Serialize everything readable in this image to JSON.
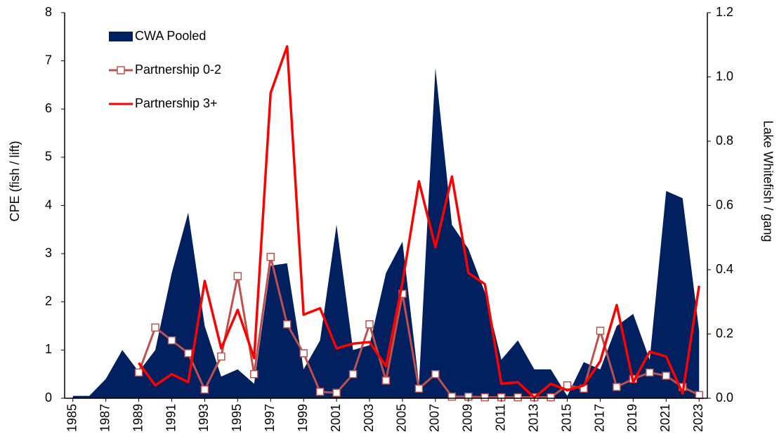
{
  "chart_data": {
    "type": "combo",
    "x": [
      1985,
      1986,
      1987,
      1988,
      1989,
      1990,
      1991,
      1992,
      1993,
      1994,
      1995,
      1996,
      1997,
      1998,
      1999,
      2000,
      2001,
      2002,
      2003,
      2004,
      2005,
      2006,
      2007,
      2008,
      2009,
      2010,
      2011,
      2012,
      2013,
      2014,
      2015,
      2016,
      2017,
      2018,
      2019,
      2020,
      2021,
      2022,
      2023
    ],
    "xlim": [
      1984.5,
      2023.5
    ],
    "xticks": [
      1985,
      1987,
      1989,
      1991,
      1993,
      1995,
      1997,
      1999,
      2001,
      2003,
      2005,
      2007,
      2009,
      2011,
      2013,
      2015,
      2017,
      2019,
      2021,
      2023
    ],
    "ylabel": "CPE  (fish / lift)",
    "y2label": "Lake Whitefish / gang",
    "ylim": [
      0,
      8
    ],
    "yticks": [
      0,
      1,
      2,
      3,
      4,
      5,
      6,
      7,
      8
    ],
    "y2lim": [
      0,
      1.2
    ],
    "y2ticks": [
      {
        "value": 0,
        "label": "0.0"
      },
      0.2,
      0.4,
      0.6,
      0.8,
      {
        "value": 1,
        "label": "1.0"
      },
      1.2
    ],
    "legend": "upper-left",
    "series": [
      {
        "name": "CWA Pooled",
        "type": "area",
        "axis": "y",
        "color": "#002060",
        "values": [
          0.05,
          0.05,
          0.4,
          1.0,
          0.55,
          1.0,
          2.6,
          3.85,
          1.5,
          0.45,
          0.6,
          0.3,
          2.75,
          2.8,
          0.6,
          1.2,
          3.6,
          1.0,
          1.1,
          2.6,
          3.25,
          0.3,
          6.85,
          3.6,
          3.1,
          2.2,
          0.8,
          1.2,
          0.6,
          0.6,
          0.05,
          0.75,
          0.6,
          1.5,
          1.75,
          0.8,
          4.3,
          4.15,
          1.4
        ]
      },
      {
        "name": "Partnership 0-2",
        "type": "line",
        "marker": "square",
        "axis": "y2",
        "color": "#c0504d",
        "values": [
          null,
          null,
          null,
          null,
          0.08,
          0.22,
          0.18,
          0.14,
          0.027,
          0.13,
          0.38,
          0.075,
          0.44,
          0.23,
          0.14,
          0.02,
          0.017,
          0.075,
          0.23,
          0.055,
          0.325,
          0.03,
          0.075,
          0.005,
          0.005,
          0.003,
          0.003,
          0.003,
          0.003,
          0.003,
          0.04,
          0.03,
          0.21,
          0.035,
          0.06,
          0.08,
          0.07,
          0.035,
          0.01
        ]
      },
      {
        "name": "Partnership 3+",
        "type": "line",
        "axis": "y2",
        "color": "#ff0000",
        "values": [
          null,
          null,
          null,
          null,
          0.11,
          0.04,
          0.075,
          0.05,
          0.365,
          0.155,
          0.275,
          0.125,
          0.95,
          1.095,
          0.26,
          0.28,
          0.155,
          0.17,
          0.175,
          0.1,
          0.36,
          0.675,
          0.47,
          0.69,
          0.39,
          0.355,
          0.045,
          0.05,
          0.002,
          0.045,
          0.025,
          0.04,
          0.115,
          0.29,
          0.05,
          0.145,
          0.13,
          0.015,
          0.35
        ]
      }
    ]
  }
}
